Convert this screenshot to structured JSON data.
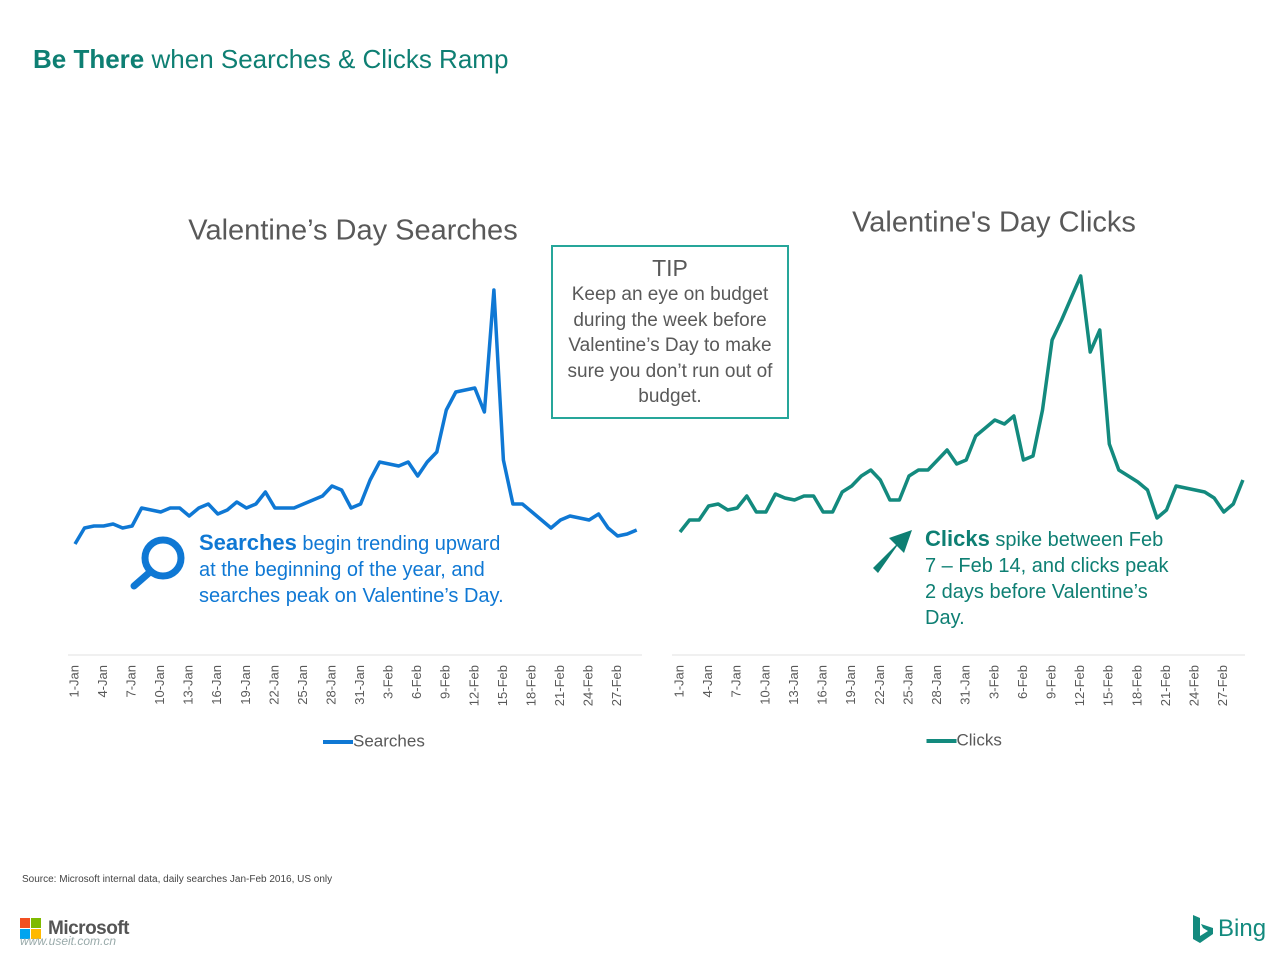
{
  "header": {
    "title_bold": "Be There",
    "title_rest": "when Searches & Clicks Ramp"
  },
  "tip": {
    "title": "TIP",
    "text": "Keep an eye on budget during the week before Valentine’s Day to make sure you don’t run out of budget."
  },
  "chart_data": [
    {
      "type": "line",
      "title": "Valentine’s Day Searches",
      "categories": [
        "1-Jan",
        null,
        null,
        "4-Jan",
        null,
        null,
        "7-Jan",
        null,
        null,
        "10-Jan",
        null,
        null,
        "13-Jan",
        null,
        null,
        "16-Jan",
        null,
        null,
        "19-Jan",
        null,
        null,
        "22-Jan",
        null,
        null,
        "25-Jan",
        null,
        null,
        "28-Jan",
        null,
        null,
        "31-Jan",
        null,
        null,
        "3-Feb",
        null,
        null,
        "6-Feb",
        null,
        null,
        "9-Feb",
        null,
        null,
        "12-Feb",
        null,
        null,
        "15-Feb",
        null,
        null,
        "18-Feb",
        null,
        null,
        "21-Feb",
        null,
        null,
        "24-Feb",
        null,
        null,
        "27-Feb",
        null,
        null
      ],
      "series": [
        {
          "name": "Searches",
          "color": "#0f78d4",
          "values": [
            29,
            33,
            33.5,
            33.5,
            34,
            33,
            33.5,
            38,
            37.5,
            37,
            38,
            38,
            36,
            38,
            39,
            36.5,
            37.5,
            39.5,
            38,
            39,
            42,
            38,
            38,
            38,
            39,
            40,
            41,
            43.5,
            42.5,
            38,
            39,
            45,
            49.5,
            49,
            48.5,
            49.5,
            46,
            49.5,
            52,
            62.5,
            67,
            67.5,
            68,
            62,
            92.5,
            50,
            39,
            39,
            37,
            35,
            33,
            35,
            36,
            35.5,
            35,
            36.5,
            33,
            31,
            31.5,
            32.5
          ]
        }
      ],
      "ylim": [
        0,
        100
      ],
      "annotation": {
        "bold": "Searches",
        "text": "begin trending upward at the beginning of the year, and searches peak on Valentine’s Day."
      }
    },
    {
      "type": "line",
      "title": "Valentine's Day Clicks",
      "categories": [
        "1-Jan",
        null,
        null,
        "4-Jan",
        null,
        null,
        "7-Jan",
        null,
        null,
        "10-Jan",
        null,
        null,
        "13-Jan",
        null,
        null,
        "16-Jan",
        null,
        null,
        "19-Jan",
        null,
        null,
        "22-Jan",
        null,
        null,
        "25-Jan",
        null,
        null,
        "28-Jan",
        null,
        null,
        "31-Jan",
        null,
        null,
        "3-Feb",
        null,
        null,
        "6-Feb",
        null,
        null,
        "9-Feb",
        null,
        null,
        "12-Feb",
        null,
        null,
        "15-Feb",
        null,
        null,
        "18-Feb",
        null,
        null,
        "21-Feb",
        null,
        null,
        "24-Feb",
        null,
        null,
        "27-Feb",
        null,
        null
      ],
      "series": [
        {
          "name": "Clicks",
          "color": "#138a7e",
          "values": [
            32,
            35,
            35,
            38.5,
            39,
            37.5,
            38,
            41,
            37,
            37,
            41.5,
            40.5,
            40,
            41,
            41,
            37,
            37,
            42,
            43.5,
            46,
            47.5,
            45,
            40,
            40,
            46,
            47.5,
            47.5,
            50,
            52.5,
            49,
            50,
            56,
            58,
            60,
            59,
            61,
            50,
            51,
            62.5,
            80,
            85,
            90.5,
            96,
            77,
            82.5,
            54,
            47.5,
            46,
            44.5,
            42.5,
            35.5,
            37.5,
            43.5,
            43,
            42.5,
            42,
            40.5,
            37,
            39,
            45
          ]
        }
      ],
      "ylim": [
        0,
        100
      ],
      "annotation": {
        "bold": "Clicks",
        "text": "spike between Feb 7 – Feb 14, and clicks peak 2 days before Valentine’s Day."
      }
    }
  ],
  "footer": {
    "source": "Source: Microsoft internal data, daily searches Jan-Feb 2016, US only",
    "microsoft": "Microsoft",
    "watermark": "www.useit.com.cn",
    "bing": "Bing"
  }
}
